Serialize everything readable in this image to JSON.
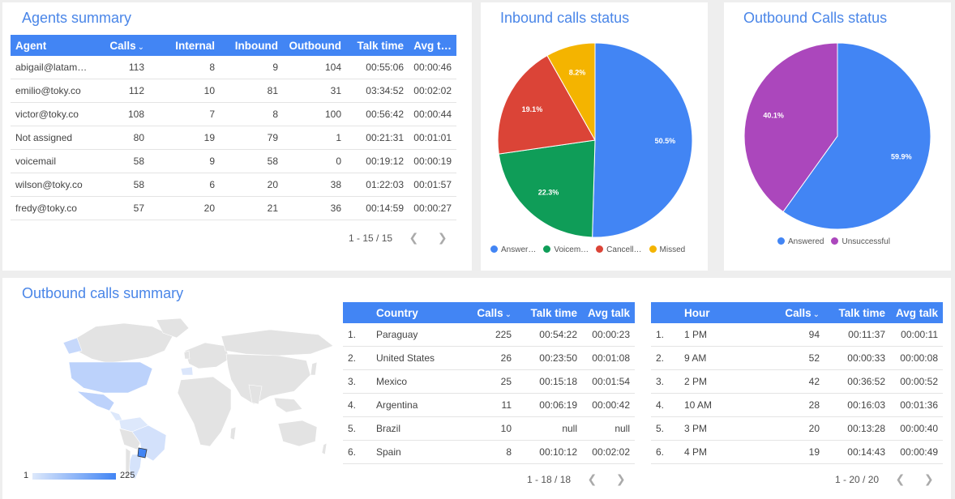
{
  "agents": {
    "title": "Agents summary",
    "columns": [
      "Agent",
      "Calls",
      "Internal",
      "Inbound",
      "Outbound",
      "Talk time",
      "Avg t…"
    ],
    "sort_indicator": "⌄",
    "rows": [
      [
        "abigail@latam…",
        "113",
        "8",
        "9",
        "104",
        "00:55:06",
        "00:00:46"
      ],
      [
        "emilio@toky.co",
        "112",
        "10",
        "81",
        "31",
        "03:34:52",
        "00:02:02"
      ],
      [
        "victor@toky.co",
        "108",
        "7",
        "8",
        "100",
        "00:56:42",
        "00:00:44"
      ],
      [
        "Not assigned",
        "80",
        "19",
        "79",
        "1",
        "00:21:31",
        "00:01:01"
      ],
      [
        "voicemail",
        "58",
        "9",
        "58",
        "0",
        "00:19:12",
        "00:00:19"
      ],
      [
        "wilson@toky.co",
        "58",
        "6",
        "20",
        "38",
        "01:22:03",
        "00:01:57"
      ],
      [
        "fredy@toky.co",
        "57",
        "20",
        "21",
        "36",
        "00:14:59",
        "00:00:27"
      ]
    ],
    "pager": "1 - 15 / 15"
  },
  "inbound": {
    "title": "Inbound calls status",
    "chart_data": {
      "type": "pie",
      "title": "Inbound calls status",
      "labels": [
        "Answer…",
        "Voicem…",
        "Cancell…",
        "Missed"
      ],
      "values": [
        50.5,
        22.3,
        19.1,
        8.2
      ],
      "value_labels": [
        "50.5%",
        "22.3%",
        "19.1%",
        "8.2%"
      ],
      "colors": [
        "#4285f4",
        "#0f9d58",
        "#db4437",
        "#f4b400"
      ],
      "legend": "bottom"
    }
  },
  "outbound": {
    "title": "Outbound Calls status",
    "chart_data": {
      "type": "pie",
      "title": "Outbound Calls status",
      "labels": [
        "Answered",
        "Unsuccessful"
      ],
      "values": [
        59.9,
        40.1
      ],
      "value_labels": [
        "59.9%",
        "40.1%"
      ],
      "colors": [
        "#4285f4",
        "#ab47bc"
      ],
      "legend": "bottom"
    }
  },
  "outbound_summary": {
    "title": "Outbound calls summary",
    "map": {
      "scale_min": "1",
      "scale_max": "225",
      "scale_color_low": "#dde8fb",
      "scale_color_high": "#4285f4"
    },
    "country_table": {
      "columns": [
        "",
        "Country",
        "Calls",
        "Talk time",
        "Avg talk"
      ],
      "rows": [
        [
          "1.",
          "Paraguay",
          "225",
          "00:54:22",
          "00:00:23"
        ],
        [
          "2.",
          "United States",
          "26",
          "00:23:50",
          "00:01:08"
        ],
        [
          "3.",
          "Mexico",
          "25",
          "00:15:18",
          "00:01:54"
        ],
        [
          "4.",
          "Argentina",
          "11",
          "00:06:19",
          "00:00:42"
        ],
        [
          "5.",
          "Brazil",
          "10",
          "null",
          "null"
        ],
        [
          "6.",
          "Spain",
          "8",
          "00:10:12",
          "00:02:02"
        ]
      ],
      "pager": "1 - 18 / 18"
    },
    "hour_table": {
      "columns": [
        "",
        "Hour",
        "Calls",
        "Talk time",
        "Avg talk"
      ],
      "rows": [
        [
          "1.",
          "1 PM",
          "94",
          "00:11:37",
          "00:00:11"
        ],
        [
          "2.",
          "9 AM",
          "52",
          "00:00:33",
          "00:00:08"
        ],
        [
          "3.",
          "2 PM",
          "42",
          "00:36:52",
          "00:00:52"
        ],
        [
          "4.",
          "10 AM",
          "28",
          "00:16:03",
          "00:01:36"
        ],
        [
          "5.",
          "3 PM",
          "20",
          "00:13:28",
          "00:00:40"
        ],
        [
          "6.",
          "4 PM",
          "19",
          "00:14:43",
          "00:00:49"
        ]
      ],
      "pager": "1 - 20 / 20"
    }
  },
  "icons": {
    "prev": "chevron-left-icon",
    "next": "chevron-right-icon"
  }
}
